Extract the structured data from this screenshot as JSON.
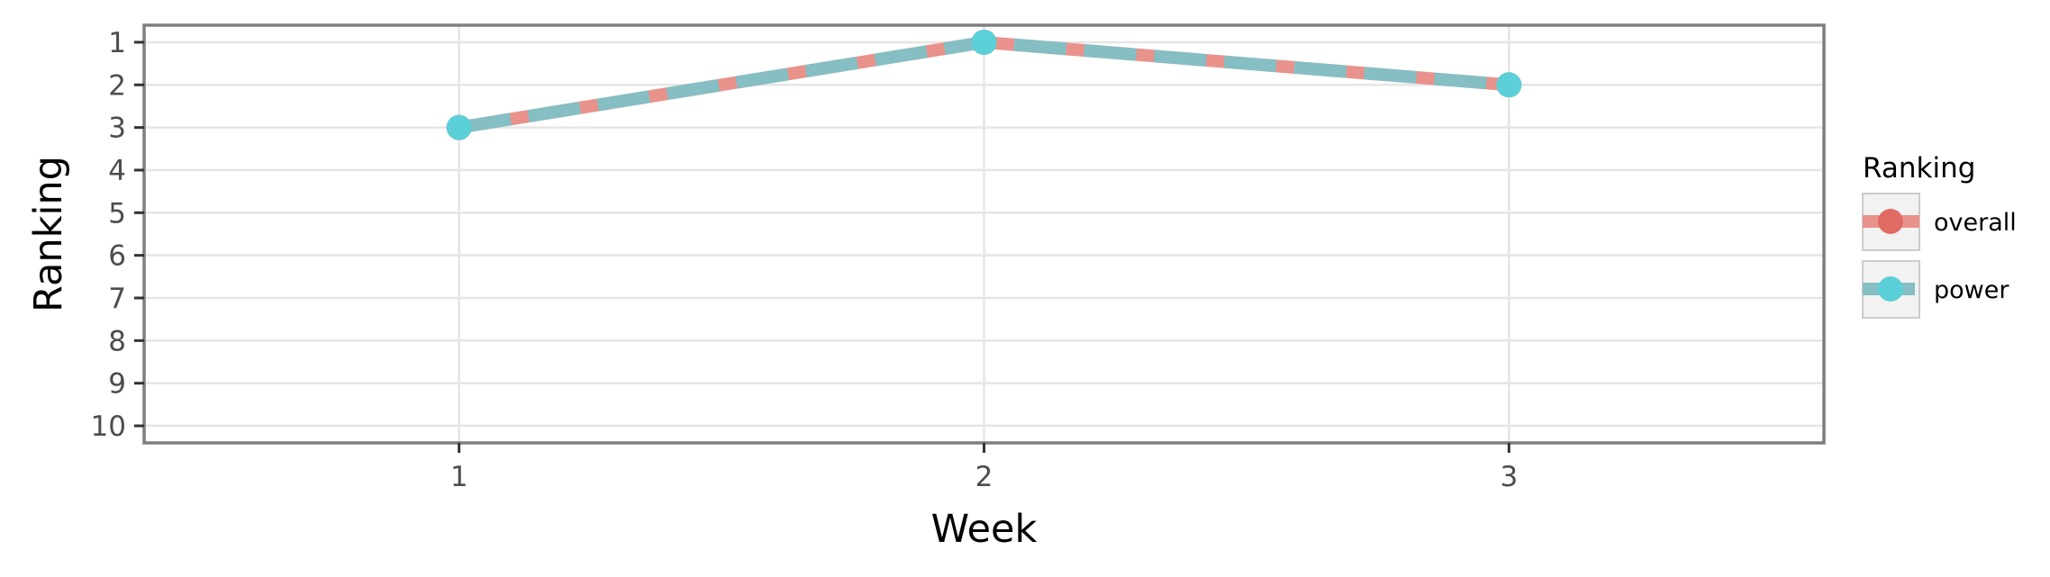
{
  "chart_data": {
    "type": "line",
    "title": "",
    "xlabel": "Week",
    "ylabel": "Ranking",
    "x": [
      1,
      2,
      3
    ],
    "xlim": [
      0.4,
      3.6
    ],
    "ylim": [
      10.4,
      0.6
    ],
    "y_reversed": true,
    "xticks": [
      "1",
      "2",
      "3"
    ],
    "yticks": [
      "1",
      "2",
      "3",
      "4",
      "5",
      "6",
      "7",
      "8",
      "9",
      "10"
    ],
    "grid": true,
    "legend": {
      "title": "Ranking",
      "placement": "right"
    },
    "series": [
      {
        "name": "overall",
        "values": [
          3,
          1,
          2
        ],
        "color": "#e06b63",
        "line_color": "#e8928b",
        "style": "solid"
      },
      {
        "name": "power",
        "values": [
          3,
          1,
          2
        ],
        "color": "#5bd0d8",
        "line_color": "#85bfc4",
        "style": "dashed"
      }
    ]
  }
}
